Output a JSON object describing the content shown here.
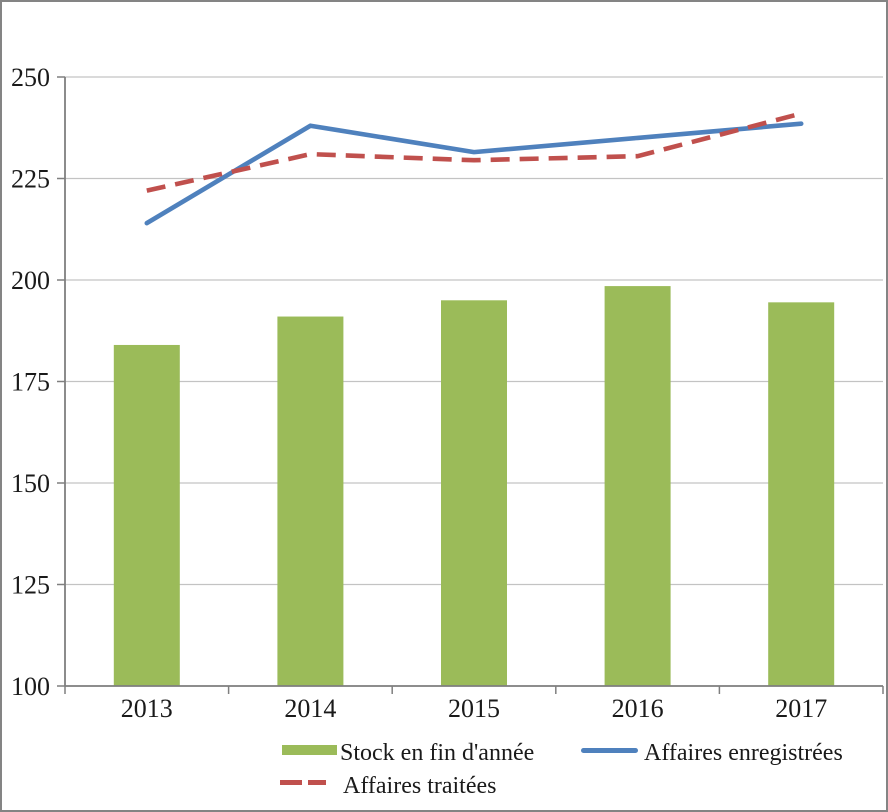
{
  "chart_data": {
    "type": "combo",
    "categories": [
      "2013",
      "2014",
      "2015",
      "2016",
      "2017"
    ],
    "series": [
      {
        "name": "Stock en fin d'année",
        "kind": "bar",
        "color": "#9BBB59",
        "values": [
          184,
          191,
          195,
          198.5,
          194.5
        ]
      },
      {
        "name": "Affaires enregistrées",
        "kind": "line",
        "line_style": "solid",
        "color": "#4F81BD",
        "values": [
          214,
          238,
          231.5,
          235,
          238.5
        ]
      },
      {
        "name": "Affaires traitées",
        "kind": "line",
        "line_style": "dashed",
        "color": "#C0504D",
        "values": [
          222,
          231,
          229.5,
          230.5,
          241
        ]
      }
    ],
    "title": "",
    "xlabel": "",
    "ylabel": "",
    "ylim": [
      100,
      250
    ],
    "yticks": [
      100,
      125,
      150,
      175,
      200,
      225,
      250
    ],
    "grid": true,
    "legend_position": "bottom"
  },
  "legend": {
    "items": [
      {
        "label": "Stock en fin d'année",
        "swatch": "bar-swatch"
      },
      {
        "label": "Affaires enregistrées",
        "swatch": "solid-line-swatch"
      },
      {
        "label": "Affaires traitées",
        "swatch": "dashed-line-swatch"
      }
    ]
  },
  "colors": {
    "background": "#FFFFFF",
    "frame_border": "#848484",
    "gridline": "#C3C3C3",
    "axis": "#7F7F7F",
    "text": "#1A1A1A"
  }
}
